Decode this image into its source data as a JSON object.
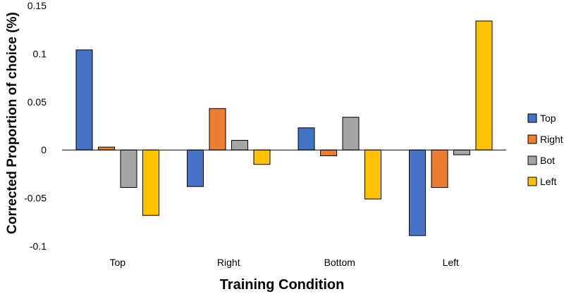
{
  "chart_data": {
    "type": "bar",
    "title": "",
    "xlabel": "Training Condition",
    "ylabel": "Corrected Proportion of choice (%)",
    "categories": [
      "Top",
      "Right",
      "Bottom",
      "Left"
    ],
    "ylim": [
      -0.1,
      0.15
    ],
    "yticks": [
      0.15,
      0.1,
      0.05,
      0,
      -0.05,
      -0.1
    ],
    "ytick_labels": [
      "0.15",
      "0.1",
      "0.05",
      "0",
      "-0.05",
      "-0.1"
    ],
    "grid": false,
    "legend_position": "right",
    "series": [
      {
        "name": "Top",
        "color": "#4472C4",
        "values": [
          0.104,
          -0.038,
          0.023,
          -0.089
        ]
      },
      {
        "name": "Right",
        "color": "#ED7D31",
        "values": [
          0.003,
          0.043,
          -0.006,
          -0.039
        ]
      },
      {
        "name": "Bot",
        "color": "#A5A5A5",
        "values": [
          -0.039,
          0.01,
          0.034,
          -0.005
        ]
      },
      {
        "name": "Left",
        "color": "#FFC000",
        "values": [
          -0.068,
          -0.015,
          -0.051,
          0.134
        ]
      }
    ]
  }
}
